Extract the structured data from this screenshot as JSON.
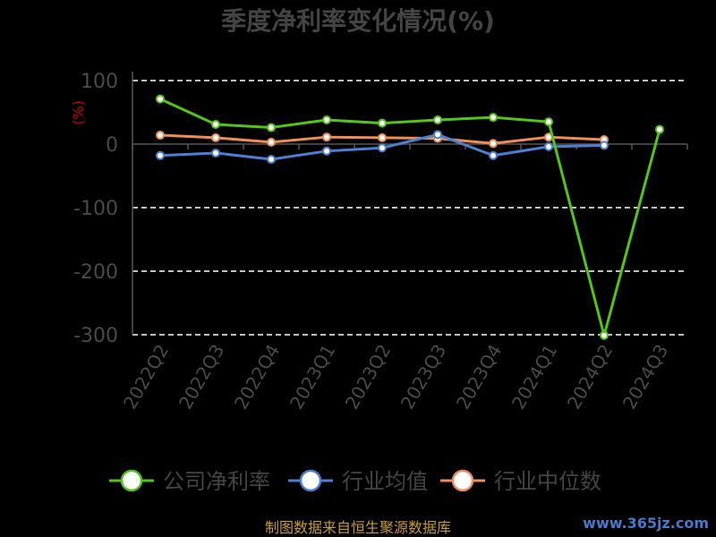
{
  "chart_data": {
    "type": "line",
    "title": "季度净利率变化情况(%)",
    "unit_label": "(%)",
    "categories": [
      "2022Q2",
      "2022Q3",
      "2022Q4",
      "2023Q1",
      "2023Q2",
      "2023Q3",
      "2023Q4",
      "2024Q1",
      "2024Q2",
      "2024Q3"
    ],
    "ylim": [
      -300,
      100
    ],
    "yticks": [
      100,
      0,
      -100,
      -200,
      -300
    ],
    "grid": true,
    "legend_position": "bottom",
    "series": [
      {
        "name": "公司净利率",
        "color": "#52c41a",
        "values": [
          71,
          31,
          26,
          38,
          33,
          38,
          42,
          35,
          -301,
          23
        ]
      },
      {
        "name": "行业均值",
        "color": "#4a7fd4",
        "values": [
          -18,
          -14,
          -24,
          -11,
          -6,
          15,
          -18,
          -4,
          -2,
          null
        ]
      },
      {
        "name": "行业中位数",
        "color": "#f08c5a",
        "values": [
          14,
          10,
          3,
          11,
          10,
          9,
          1,
          11,
          7,
          null
        ]
      }
    ]
  },
  "footer": {
    "source": "制图数据来自恒生聚源数据库",
    "watermark": "www.365jz.com"
  }
}
